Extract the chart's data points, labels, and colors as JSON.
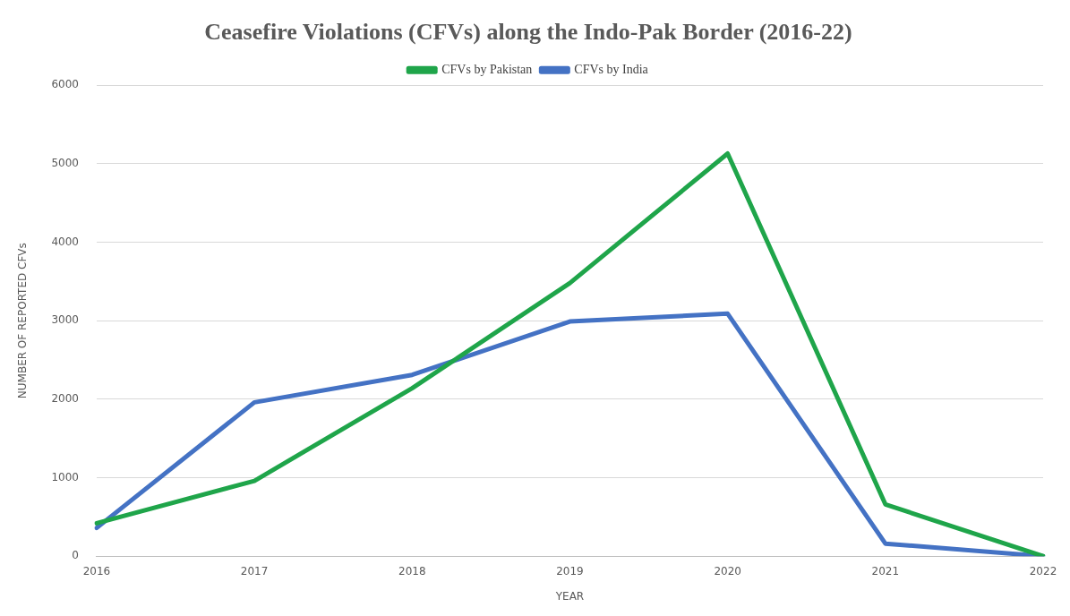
{
  "chart_data": {
    "type": "line",
    "title": "Ceasefire Violations (CFVs) along the Indo-Pak Border (2016-22)",
    "xlabel": "YEAR",
    "ylabel": "NUMBER OF REPORTED CFVs",
    "categories": [
      "2016",
      "2017",
      "2018",
      "2019",
      "2020",
      "2021",
      "2022"
    ],
    "series": [
      {
        "name": "CFVs by Pakistan",
        "color": "#1fa54a",
        "values": [
          420,
          960,
          2140,
          3480,
          5130,
          660,
          0
        ]
      },
      {
        "name": "CFVs by India",
        "color": "#4472c4",
        "values": [
          360,
          1960,
          2310,
          2990,
          3090,
          160,
          0
        ]
      }
    ],
    "ylim": [
      0,
      6000
    ],
    "yticks": [
      0,
      1000,
      2000,
      3000,
      4000,
      5000,
      6000
    ],
    "grid": "y",
    "legend": "top",
    "marker": "none",
    "line_style": "solid"
  }
}
